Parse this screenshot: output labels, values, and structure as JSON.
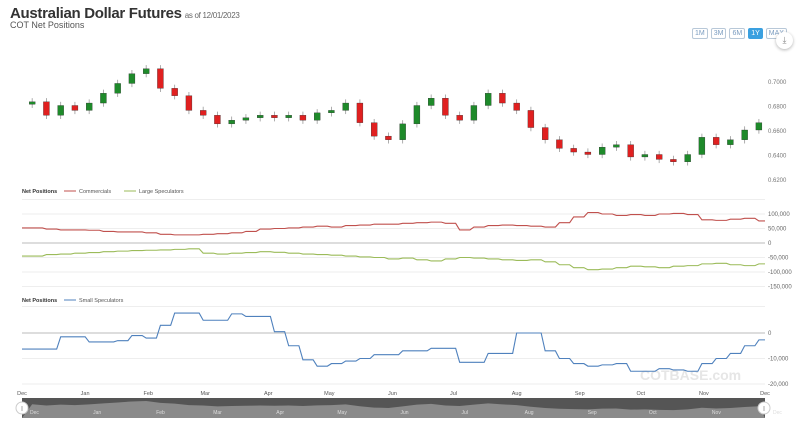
{
  "header": {
    "title": "Australian Dollar Futures",
    "as_of": "as of 12/01/2023",
    "subtitle": "COT Net Positions"
  },
  "range_buttons": [
    {
      "label": "1M"
    },
    {
      "label": "3M"
    },
    {
      "label": "6M"
    },
    {
      "label": "1Y",
      "active": true
    },
    {
      "label": "MAX"
    }
  ],
  "download_icon": "download-icon",
  "watermark": "COTBASE.com",
  "colors": {
    "up": "#1e8a2a",
    "down": "#e02020",
    "commercials": "#c0504d",
    "large_speculators": "#9bbb59",
    "small_speculators": "#4f81bd",
    "navigator": "#555555"
  },
  "x_labels": [
    "Dec",
    "Jan",
    "Feb",
    "Mar",
    "Apr",
    "May",
    "Jun",
    "Jul",
    "Aug",
    "Sep",
    "Oct",
    "Nov",
    "Dec"
  ],
  "navigator_labels": [
    "Dec",
    "Jan",
    "Feb",
    "Mar",
    "Apr",
    "May",
    "Jun",
    "Jul",
    "Aug",
    "Sep",
    "Oct",
    "Nov",
    "Dec"
  ],
  "chart_data": [
    {
      "type": "candlestick",
      "title": "Australian Dollar Futures",
      "y_ticks": [
        "0.7000",
        "0.6800",
        "0.6600",
        "0.6400",
        "0.6200"
      ],
      "ylim": [
        0.62,
        0.72
      ],
      "x": [
        "2022-12-06",
        "2022-12-13",
        "2022-12-20",
        "2022-12-27",
        "2023-01-03",
        "2023-01-10",
        "2023-01-17",
        "2023-01-24",
        "2023-01-31",
        "2023-02-07",
        "2023-02-14",
        "2023-02-21",
        "2023-02-28",
        "2023-03-07",
        "2023-03-14",
        "2023-03-21",
        "2023-03-28",
        "2023-04-04",
        "2023-04-11",
        "2023-04-18",
        "2023-04-25",
        "2023-05-02",
        "2023-05-09",
        "2023-05-16",
        "2023-05-23",
        "2023-05-30",
        "2023-06-06",
        "2023-06-13",
        "2023-06-20",
        "2023-06-27",
        "2023-07-04",
        "2023-07-11",
        "2023-07-18",
        "2023-07-25",
        "2023-08-01",
        "2023-08-08",
        "2023-08-15",
        "2023-08-22",
        "2023-08-29",
        "2023-09-05",
        "2023-09-12",
        "2023-09-19",
        "2023-09-26",
        "2023-10-03",
        "2023-10-10",
        "2023-10-17",
        "2023-10-24",
        "2023-10-31",
        "2023-11-07",
        "2023-11-14",
        "2023-11-21",
        "2023-11-28"
      ],
      "close": [
        0.683,
        0.672,
        0.68,
        0.676,
        0.682,
        0.69,
        0.698,
        0.706,
        0.71,
        0.694,
        0.688,
        0.676,
        0.672,
        0.665,
        0.668,
        0.67,
        0.672,
        0.67,
        0.672,
        0.668,
        0.674,
        0.676,
        0.682,
        0.666,
        0.655,
        0.652,
        0.665,
        0.68,
        0.686,
        0.672,
        0.668,
        0.68,
        0.69,
        0.682,
        0.676,
        0.662,
        0.652,
        0.645,
        0.642,
        0.64,
        0.646,
        0.648,
        0.638,
        0.64,
        0.636,
        0.634,
        0.64,
        0.654,
        0.648,
        0.652,
        0.66,
        0.666
      ]
    },
    {
      "type": "line",
      "legend_title": "Net Positions",
      "y_ticks": [
        "100,000",
        "50,000",
        "0",
        "-50,000",
        "-100,000",
        "-150,000"
      ],
      "ylim": [
        -150000,
        100000
      ],
      "series": [
        {
          "name": "Commercials",
          "values": [
            52000,
            48000,
            45000,
            45000,
            44000,
            40000,
            38000,
            38000,
            35000,
            30000,
            28000,
            28000,
            30000,
            32000,
            35000,
            40000,
            48000,
            50000,
            52000,
            55000,
            58000,
            55000,
            60000,
            62000,
            65000,
            65000,
            68000,
            70000,
            72000,
            68000,
            45000,
            55000,
            60000,
            62000,
            60000,
            58000,
            55000,
            70000,
            90000,
            105000,
            100000,
            95000,
            98000,
            95000,
            100000,
            102000,
            98000,
            80000,
            78000,
            82000,
            85000,
            76000
          ]
        },
        {
          "name": "Large Speculators",
          "values": [
            -45000,
            -40000,
            -38000,
            -35000,
            -33000,
            -30000,
            -28000,
            -26000,
            -25000,
            -24000,
            -22000,
            -20000,
            -35000,
            -38000,
            -35000,
            -33000,
            -30000,
            -32000,
            -35000,
            -38000,
            -40000,
            -42000,
            -45000,
            -48000,
            -50000,
            -55000,
            -52000,
            -58000,
            -62000,
            -55000,
            -50000,
            -52000,
            -55000,
            -58000,
            -60000,
            -58000,
            -65000,
            -75000,
            -85000,
            -92000,
            -90000,
            -85000,
            -80000,
            -82000,
            -85000,
            -80000,
            -78000,
            -72000,
            -70000,
            -75000,
            -78000,
            -72000
          ]
        }
      ]
    },
    {
      "type": "line",
      "legend_title": "Net Positions",
      "y_ticks": [
        "0",
        "-10,000",
        "-20,000"
      ],
      "ylim": [
        -20000,
        10000
      ],
      "series": [
        {
          "name": "Small Speculators",
          "values": [
            -6300,
            -6300,
            -1500,
            -1500,
            -3500,
            -3500,
            -3000,
            -1000,
            -2000,
            3000,
            7800,
            7800,
            5000,
            5000,
            7500,
            6500,
            6500,
            500,
            -5000,
            -10500,
            -13000,
            -12000,
            -11000,
            -10000,
            -8500,
            -8500,
            -7000,
            -7000,
            -6000,
            -6000,
            -11500,
            -11500,
            -8000,
            -8000,
            0,
            0,
            -7000,
            -10000,
            -12000,
            -13000,
            -12500,
            -12000,
            -15000,
            -15000,
            -14000,
            -14500,
            -15000,
            -12000,
            -10000,
            -8000,
            -5000,
            -2700
          ]
        }
      ]
    }
  ]
}
